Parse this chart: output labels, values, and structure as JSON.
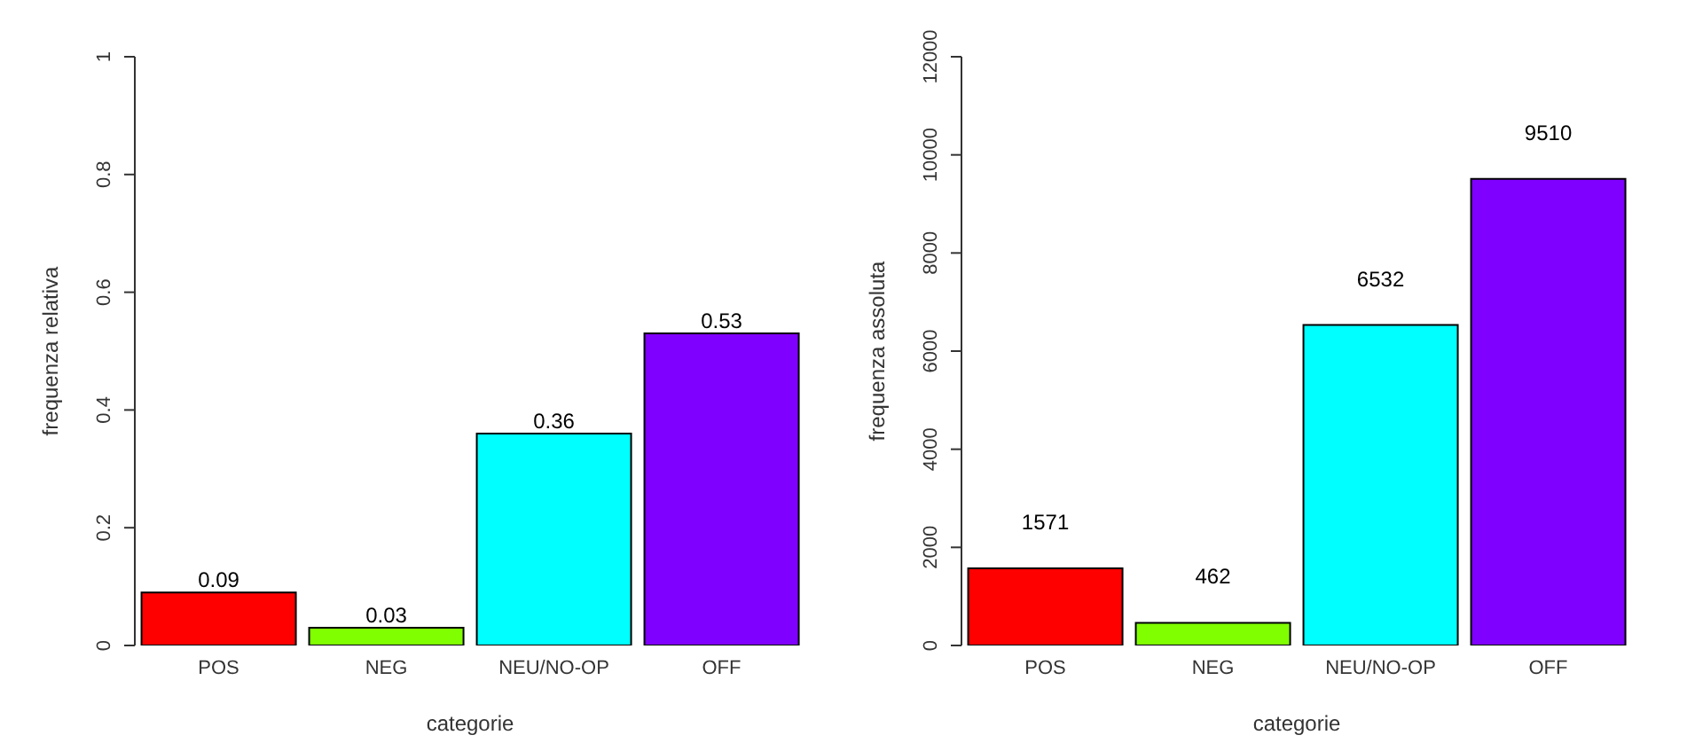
{
  "chart_data": [
    {
      "type": "bar",
      "xlabel": "categorie",
      "ylabel": "frequenza relativa",
      "categories": [
        "POS",
        "NEG",
        "NEU/NO-OP",
        "OFF"
      ],
      "values": [
        0.09,
        0.03,
        0.36,
        0.53
      ],
      "colors": [
        "#ff0000",
        "#80ff00",
        "#00ffff",
        "#8000ff"
      ],
      "ylim": [
        0,
        1
      ],
      "yticks": [
        0,
        0.2,
        0.4,
        0.6,
        0.8,
        1
      ],
      "data_labels": true,
      "grid": false,
      "legend": false
    },
    {
      "type": "bar",
      "xlabel": "categorie",
      "ylabel": "frequenza assoluta",
      "categories": [
        "POS",
        "NEG",
        "NEU/NO-OP",
        "OFF"
      ],
      "values": [
        1571,
        462,
        6532,
        9510
      ],
      "colors": [
        "#ff0000",
        "#80ff00",
        "#00ffff",
        "#8000ff"
      ],
      "ylim": [
        0,
        12000
      ],
      "yticks": [
        0,
        2000,
        4000,
        6000,
        8000,
        10000,
        12000
      ],
      "data_labels": true,
      "grid": false,
      "legend": false
    }
  ]
}
